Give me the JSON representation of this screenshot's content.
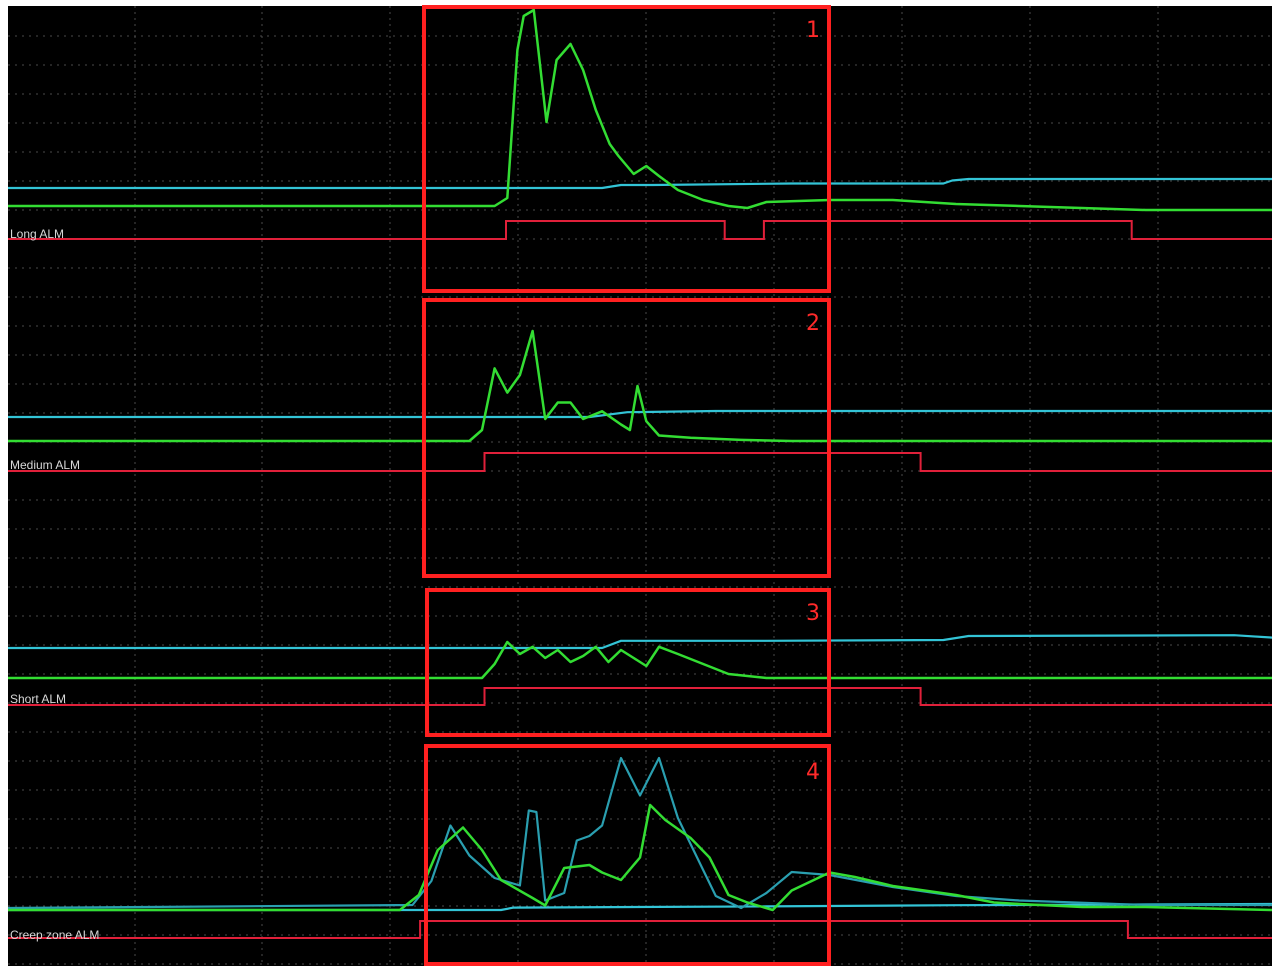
{
  "colors": {
    "background": "#000000",
    "grid": "#4a4a4a",
    "signal_green": "#33dd33",
    "signal_cyan": "#33c4d6",
    "signal_teal": "#2a9fb0",
    "alarm_red": "#e0203a",
    "highlight_box": "#ff2020"
  },
  "channels": [
    {
      "label": "Long ALM",
      "box_number": "1"
    },
    {
      "label": "Medium ALM",
      "box_number": "2"
    },
    {
      "label": "Short ALM",
      "box_number": "3"
    },
    {
      "label": "Creep zone ALM",
      "box_number": "4"
    }
  ],
  "chart_data": {
    "type": "line",
    "title": "",
    "xlabel": "",
    "ylabel": "",
    "grid": true,
    "x": [
      0,
      10,
      20,
      30,
      40,
      50,
      60,
      70,
      80,
      90,
      100
    ],
    "panels": [
      {
        "label": "Long ALM",
        "box_number": "1",
        "series": [
          {
            "color": "green",
            "points": [
              [
                0,
                0.02
              ],
              [
                38.5,
                0.02
              ],
              [
                39.5,
                0.06
              ],
              [
                40.3,
                0.8
              ],
              [
                40.8,
                0.97
              ],
              [
                41.6,
                1.0
              ],
              [
                42.6,
                0.44
              ],
              [
                43.4,
                0.75
              ],
              [
                44.5,
                0.83
              ],
              [
                45.5,
                0.7
              ],
              [
                46.5,
                0.5
              ],
              [
                47.6,
                0.33
              ],
              [
                48.3,
                0.27
              ],
              [
                49.5,
                0.18
              ],
              [
                50.5,
                0.22
              ],
              [
                51.5,
                0.17
              ],
              [
                53,
                0.1
              ],
              [
                55,
                0.05
              ],
              [
                57,
                0.02
              ],
              [
                58.5,
                0.01
              ],
              [
                60,
                0.04
              ],
              [
                65,
                0.05
              ],
              [
                70,
                0.05
              ],
              [
                75,
                0.03
              ],
              [
                80,
                0.02
              ],
              [
                90,
                0.0
              ],
              [
                100,
                0.0
              ]
            ]
          },
          {
            "color": "cyan",
            "points": [
              [
                0,
                0.0
              ],
              [
                47,
                0.0
              ],
              [
                48.5,
                0.02
              ],
              [
                51,
                0.02
              ],
              [
                62,
                0.03
              ],
              [
                65,
                0.03
              ],
              [
                74,
                0.03
              ],
              [
                74.7,
                0.05
              ],
              [
                76,
                0.06
              ],
              [
                100,
                0.06
              ]
            ]
          }
        ],
        "alarm": [
          [
            0,
            0
          ],
          [
            39.4,
            0
          ],
          [
            39.4,
            1
          ],
          [
            56.7,
            1
          ],
          [
            56.7,
            0
          ],
          [
            59.8,
            0
          ],
          [
            59.8,
            1
          ],
          [
            88.9,
            1
          ],
          [
            88.9,
            0
          ],
          [
            100,
            0
          ]
        ]
      },
      {
        "label": "Medium ALM",
        "box_number": "2",
        "series": [
          {
            "color": "green",
            "points": [
              [
                0,
                0.0
              ],
              [
                36.5,
                0.0
              ],
              [
                37.5,
                0.1
              ],
              [
                38.5,
                0.66
              ],
              [
                39.5,
                0.44
              ],
              [
                40.5,
                0.6
              ],
              [
                41.5,
                1.0
              ],
              [
                42.5,
                0.2
              ],
              [
                43.5,
                0.35
              ],
              [
                44.5,
                0.35
              ],
              [
                45.5,
                0.2
              ],
              [
                47,
                0.27
              ],
              [
                48.5,
                0.15
              ],
              [
                49.2,
                0.1
              ],
              [
                49.8,
                0.5
              ],
              [
                50.5,
                0.18
              ],
              [
                51.5,
                0.05
              ],
              [
                54,
                0.03
              ],
              [
                58,
                0.01
              ],
              [
                62,
                0.0
              ],
              [
                100,
                0.0
              ]
            ]
          },
          {
            "color": "cyan",
            "points": [
              [
                0,
                0.0
              ],
              [
                46,
                0.0
              ],
              [
                49,
                0.04
              ],
              [
                56,
                0.05
              ],
              [
                65,
                0.05
              ],
              [
                100,
                0.05
              ]
            ]
          }
        ],
        "alarm": [
          [
            0,
            0
          ],
          [
            37.7,
            0
          ],
          [
            37.7,
            1
          ],
          [
            72.2,
            1
          ],
          [
            72.2,
            0
          ],
          [
            100,
            0
          ]
        ]
      },
      {
        "label": "Short ALM",
        "box_number": "3",
        "series": [
          {
            "color": "green",
            "points": [
              [
                0,
                0.0
              ],
              [
                37.5,
                0.0
              ],
              [
                38.5,
                0.35
              ],
              [
                39.5,
                0.9
              ],
              [
                40.5,
                0.6
              ],
              [
                41.5,
                0.78
              ],
              [
                42.5,
                0.5
              ],
              [
                43.5,
                0.7
              ],
              [
                44.5,
                0.4
              ],
              [
                45.5,
                0.55
              ],
              [
                46.5,
                0.78
              ],
              [
                47.5,
                0.4
              ],
              [
                48.5,
                0.7
              ],
              [
                49.5,
                0.5
              ],
              [
                50.5,
                0.3
              ],
              [
                51.5,
                0.78
              ],
              [
                53,
                0.6
              ],
              [
                55,
                0.35
              ],
              [
                57,
                0.1
              ],
              [
                60,
                0.0
              ],
              [
                100,
                0.0
              ]
            ]
          },
          {
            "color": "cyan",
            "points": [
              [
                0,
                0.0
              ],
              [
                47,
                0.0
              ],
              [
                48.5,
                0.18
              ],
              [
                60,
                0.18
              ],
              [
                74,
                0.2
              ],
              [
                76,
                0.3
              ],
              [
                97,
                0.32
              ],
              [
                100,
                0.26
              ]
            ]
          }
        ],
        "alarm": [
          [
            0,
            0
          ],
          [
            37.7,
            0
          ],
          [
            37.7,
            1
          ],
          [
            72.2,
            1
          ],
          [
            72.2,
            0
          ],
          [
            100,
            0
          ]
        ]
      },
      {
        "label": "Creep zone ALM",
        "box_number": "4",
        "series": [
          {
            "color": "green",
            "points": [
              [
                0,
                0.0
              ],
              [
                31,
                0.0
              ],
              [
                32.5,
                0.1
              ],
              [
                34,
                0.4
              ],
              [
                36,
                0.55
              ],
              [
                37.5,
                0.4
              ],
              [
                39,
                0.2
              ],
              [
                41.5,
                0.08
              ],
              [
                42.5,
                0.03
              ],
              [
                44,
                0.28
              ],
              [
                46,
                0.3
              ],
              [
                47,
                0.25
              ],
              [
                48.5,
                0.2
              ],
              [
                50,
                0.35
              ],
              [
                50.8,
                0.7
              ],
              [
                52,
                0.6
              ],
              [
                54,
                0.48
              ],
              [
                55.5,
                0.35
              ],
              [
                57,
                0.1
              ],
              [
                58.5,
                0.05
              ],
              [
                60.5,
                0.0
              ],
              [
                62,
                0.13
              ],
              [
                65,
                0.25
              ],
              [
                67,
                0.22
              ],
              [
                70,
                0.16
              ],
              [
                75,
                0.1
              ],
              [
                78,
                0.05
              ],
              [
                80,
                0.04
              ],
              [
                85,
                0.02
              ],
              [
                90,
                0.02
              ],
              [
                100,
                0.0
              ]
            ]
          },
          {
            "color": "teal",
            "points": [
              [
                0,
                0.0
              ],
              [
                32,
                0.02
              ],
              [
                33.5,
                0.18
              ],
              [
                35,
                0.55
              ],
              [
                36.5,
                0.35
              ],
              [
                38.5,
                0.2
              ],
              [
                40.5,
                0.15
              ],
              [
                41.2,
                0.65
              ],
              [
                41.8,
                0.64
              ],
              [
                42.5,
                0.05
              ],
              [
                44,
                0.1
              ],
              [
                45,
                0.45
              ],
              [
                46,
                0.48
              ],
              [
                47,
                0.55
              ],
              [
                48.5,
                1.0
              ],
              [
                50,
                0.75
              ],
              [
                51.5,
                1.0
              ],
              [
                53,
                0.6
              ],
              [
                56,
                0.08
              ],
              [
                58,
                0.0
              ],
              [
                60,
                0.1
              ],
              [
                62,
                0.24
              ],
              [
                65,
                0.22
              ],
              [
                70,
                0.14
              ],
              [
                75,
                0.08
              ],
              [
                80,
                0.05
              ],
              [
                90,
                0.02
              ],
              [
                100,
                0.02
              ]
            ]
          },
          {
            "color": "cyan",
            "points": [
              [
                0,
                0.0
              ],
              [
                39,
                0.0
              ],
              [
                40,
                0.02
              ],
              [
                60,
                0.03
              ],
              [
                75,
                0.04
              ],
              [
                100,
                0.05
              ]
            ]
          }
        ],
        "alarm": [
          [
            0,
            0
          ],
          [
            32.6,
            0
          ],
          [
            32.6,
            1
          ],
          [
            88.6,
            1
          ],
          [
            88.6,
            0
          ],
          [
            100,
            0
          ]
        ]
      }
    ]
  }
}
